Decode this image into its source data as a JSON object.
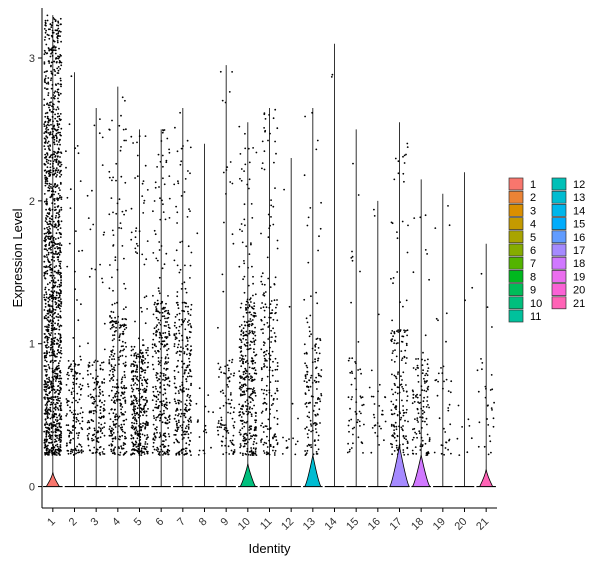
{
  "chart_data": {
    "type": "violin",
    "xlabel": "Identity",
    "ylabel": "Expression Level",
    "categories": [
      "1",
      "2",
      "3",
      "4",
      "5",
      "6",
      "7",
      "8",
      "9",
      "10",
      "11",
      "12",
      "13",
      "14",
      "15",
      "16",
      "17",
      "18",
      "19",
      "20",
      "21"
    ],
    "ylim": [
      -0.15,
      3.35
    ],
    "yticks": [
      0,
      1,
      2,
      3
    ],
    "legend_position": "right",
    "series": [
      {
        "name": "1",
        "color": "#F8766D",
        "max": 3.3,
        "nonzero_frac": 0.55,
        "dense_max": 2.6,
        "n_points": 1400,
        "violin_height": 0.1,
        "violin_width": 0.6
      },
      {
        "name": "2",
        "color": "#EB8335",
        "max": 2.9,
        "nonzero_frac": 0.05,
        "dense_max": 0.9,
        "n_points": 160,
        "violin_height": 0,
        "violin_width": 0
      },
      {
        "name": "3",
        "color": "#DA8F00",
        "max": 2.65,
        "nonzero_frac": 0.08,
        "dense_max": 0.9,
        "n_points": 170,
        "violin_height": 0,
        "violin_width": 0
      },
      {
        "name": "4",
        "color": "#C49A00",
        "max": 2.8,
        "nonzero_frac": 0.12,
        "dense_max": 1.2,
        "n_points": 320,
        "violin_height": 0,
        "violin_width": 0
      },
      {
        "name": "5",
        "color": "#A9A400",
        "max": 2.5,
        "nonzero_frac": 0.12,
        "dense_max": 1.0,
        "n_points": 360,
        "violin_height": 0,
        "violin_width": 0
      },
      {
        "name": "6",
        "color": "#86AC00",
        "max": 2.5,
        "nonzero_frac": 0.12,
        "dense_max": 1.3,
        "n_points": 340,
        "violin_height": 0,
        "violin_width": 0
      },
      {
        "name": "7",
        "color": "#53B400",
        "max": 2.65,
        "nonzero_frac": 0.12,
        "dense_max": 1.3,
        "n_points": 300,
        "violin_height": 0,
        "violin_width": 0
      },
      {
        "name": "8",
        "color": "#00B81F",
        "max": 2.4,
        "nonzero_frac": 0.03,
        "dense_max": 0.6,
        "n_points": 20,
        "violin_height": 0,
        "violin_width": 0
      },
      {
        "name": "9",
        "color": "#00BC59",
        "max": 2.95,
        "nonzero_frac": 0.05,
        "dense_max": 0.9,
        "n_points": 110,
        "violin_height": 0,
        "violin_width": 0
      },
      {
        "name": "10",
        "color": "#00BF7D",
        "max": 2.55,
        "nonzero_frac": 0.3,
        "dense_max": 1.3,
        "n_points": 380,
        "violin_height": 0.16,
        "violin_width": 0.7
      },
      {
        "name": "11",
        "color": "#00C19C",
        "max": 2.65,
        "nonzero_frac": 0.08,
        "dense_max": 1.5,
        "n_points": 210,
        "violin_height": 0,
        "violin_width": 0
      },
      {
        "name": "12",
        "color": "#00C0B7",
        "max": 2.3,
        "nonzero_frac": 0.02,
        "dense_max": 0.6,
        "n_points": 15,
        "violin_height": 0,
        "violin_width": 0
      },
      {
        "name": "13",
        "color": "#00BCD1",
        "max": 2.65,
        "nonzero_frac": 0.3,
        "dense_max": 1.1,
        "n_points": 150,
        "violin_height": 0.22,
        "violin_width": 0.75
      },
      {
        "name": "14",
        "color": "#00B6EB",
        "max": 3.1,
        "nonzero_frac": 0.01,
        "dense_max": 0.5,
        "n_points": 2,
        "violin_height": 0,
        "violin_width": 0
      },
      {
        "name": "15",
        "color": "#00ACFC",
        "max": 2.5,
        "nonzero_frac": 0.06,
        "dense_max": 0.9,
        "n_points": 60,
        "violin_height": 0,
        "violin_width": 0
      },
      {
        "name": "16",
        "color": "#619CFF",
        "max": 2.0,
        "nonzero_frac": 0.05,
        "dense_max": 0.7,
        "n_points": 30,
        "violin_height": 0,
        "violin_width": 0
      },
      {
        "name": "17",
        "color": "#A58AFF",
        "max": 2.55,
        "nonzero_frac": 0.35,
        "dense_max": 1.1,
        "n_points": 180,
        "violin_height": 0.28,
        "violin_width": 0.9
      },
      {
        "name": "18",
        "color": "#D078FF",
        "max": 2.15,
        "nonzero_frac": 0.3,
        "dense_max": 0.9,
        "n_points": 120,
        "violin_height": 0.22,
        "violin_width": 0.8
      },
      {
        "name": "19",
        "color": "#EB6DEF",
        "max": 2.05,
        "nonzero_frac": 0.05,
        "dense_max": 0.8,
        "n_points": 40,
        "violin_height": 0,
        "violin_width": 0
      },
      {
        "name": "20",
        "color": "#FA62D5",
        "max": 2.2,
        "nonzero_frac": 0.02,
        "dense_max": 0.6,
        "n_points": 10,
        "violin_height": 0,
        "violin_width": 0
      },
      {
        "name": "21",
        "color": "#FF63B6",
        "max": 1.7,
        "nonzero_frac": 0.15,
        "dense_max": 0.9,
        "n_points": 30,
        "violin_height": 0.12,
        "violin_width": 0.6
      }
    ]
  }
}
